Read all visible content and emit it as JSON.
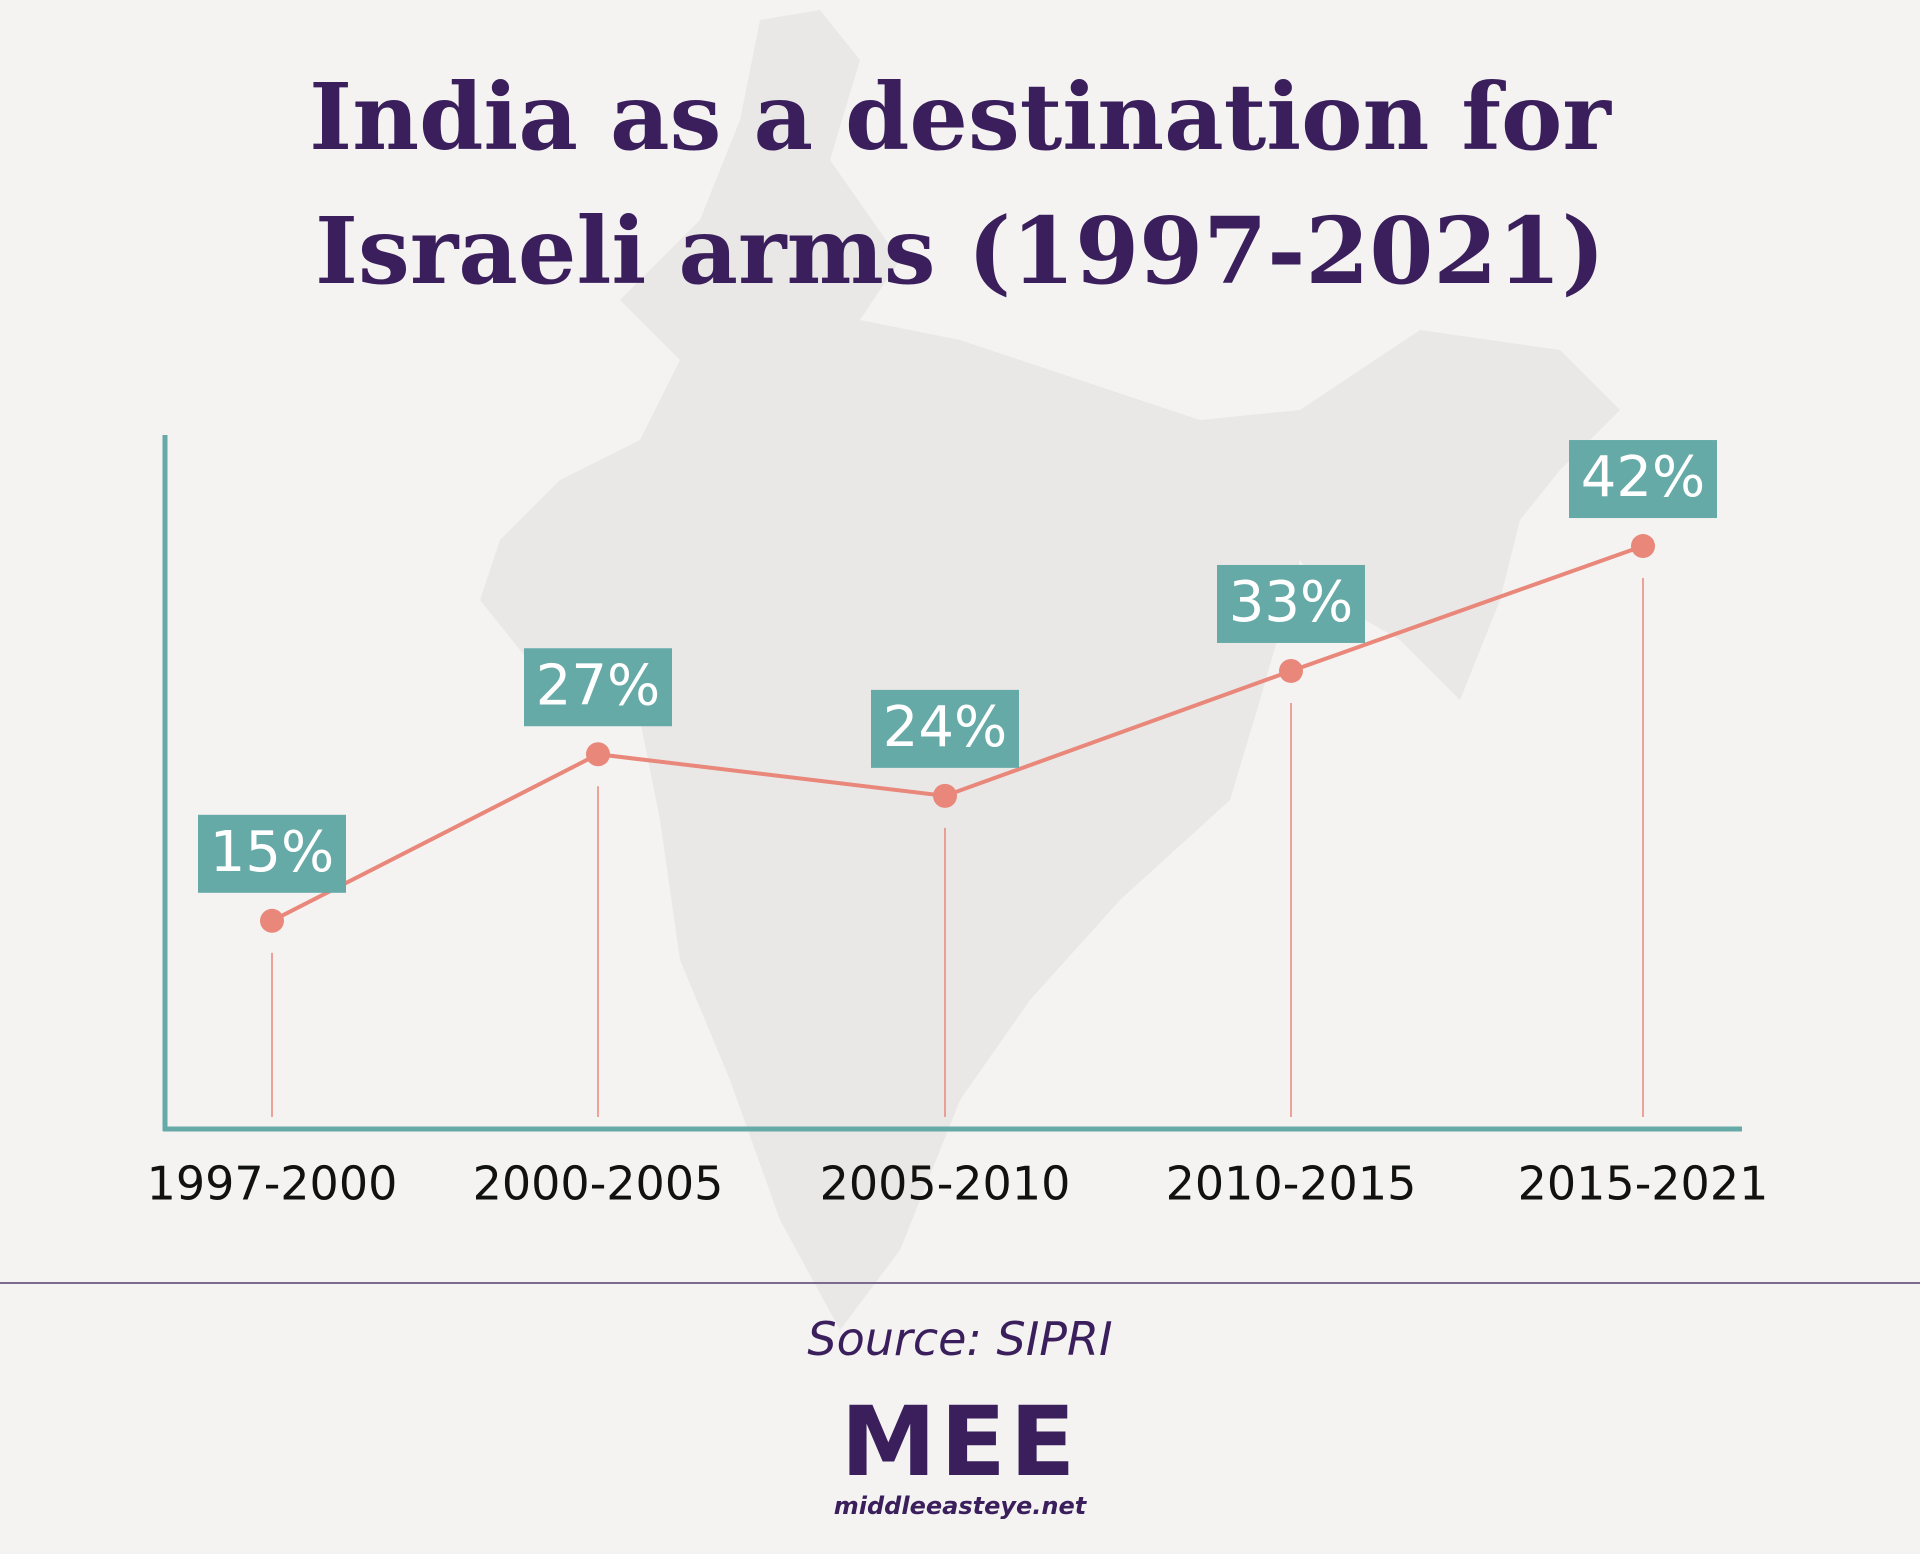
{
  "chart_data": {
    "type": "line",
    "title": "India as a destination for Israeli arms (1997-2021)",
    "categories": [
      "1997-2000",
      "2000-2005",
      "2005-2010",
      "2010-2015",
      "2015-2021"
    ],
    "values": [
      15,
      27,
      24,
      33,
      42
    ],
    "value_labels": [
      "15%",
      "27%",
      "24%",
      "33%",
      "42%"
    ],
    "color": "#e8877a",
    "label_color": "#66aaa8",
    "ylim": [
      0,
      50
    ]
  },
  "footer": {
    "source": "Source: SIPRI",
    "logo": "MEE",
    "website": "middleeasteye.net"
  }
}
